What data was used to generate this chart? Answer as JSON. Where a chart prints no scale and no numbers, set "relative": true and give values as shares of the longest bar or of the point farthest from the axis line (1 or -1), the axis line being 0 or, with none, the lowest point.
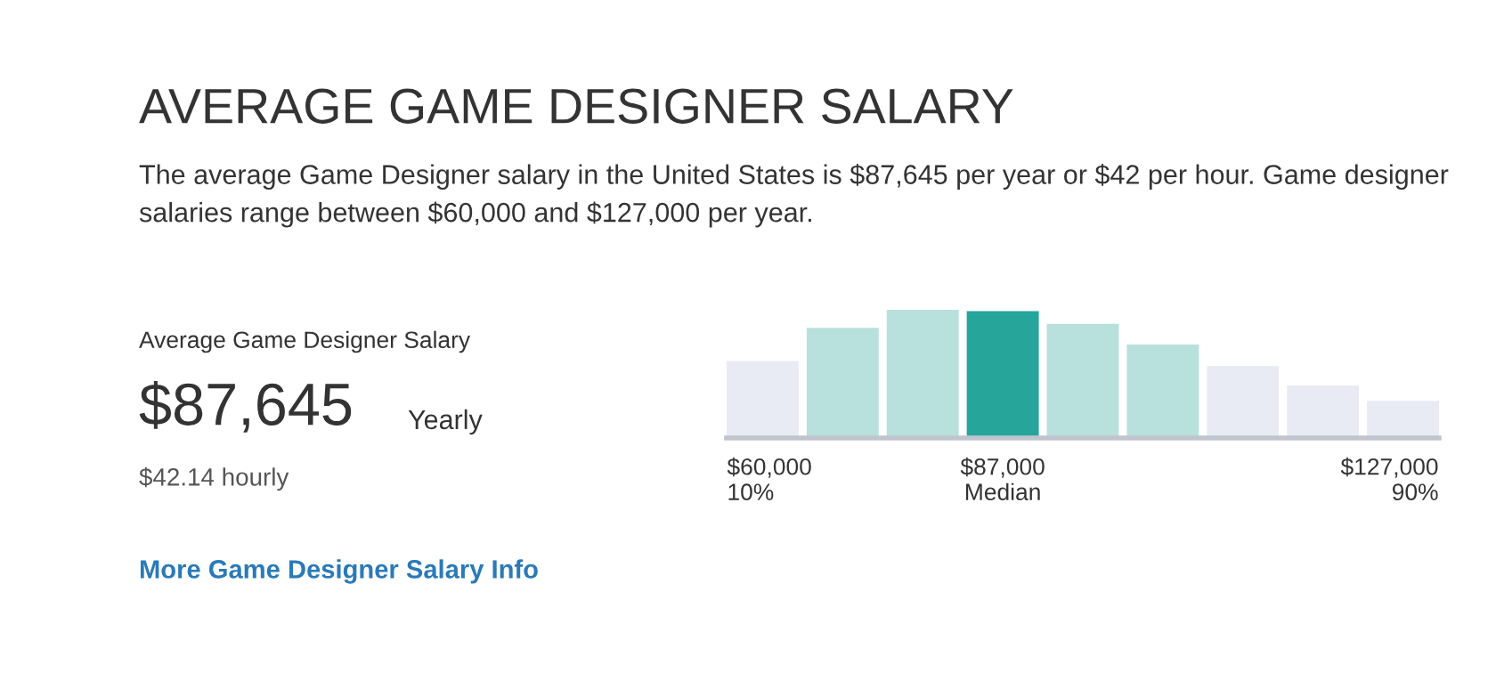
{
  "chart_data": {
    "type": "bar",
    "title": "AVERAGE GAME DESIGNER SALARY",
    "subtitle": "The average Game Designer salary in the United States is $87,645 per year or $42 per hour. Game designer salaries range between $60,000 and $127,000 per year.",
    "categories": [
      "$60,000\n10%",
      null,
      null,
      "$87,000\nMedian",
      null,
      null,
      null,
      null,
      "$127,000\n90%"
    ],
    "values": [
      0.6,
      0.86,
      1,
      0.99,
      0.89,
      0.73,
      0.56,
      0.41,
      0.29
    ],
    "colors": [
      "#e8ebf4",
      "#b8e0dc",
      "#b8e0dc",
      "#26a69a",
      "#b8e0dc",
      "#b8e0dc",
      "#e8ebf4",
      "#e8ebf4",
      "#e8ebf4"
    ],
    "relative": true,
    "grid": false,
    "legend": false,
    "annotations": [
      "Average Game Designer Salary",
      "$87,645",
      "Yearly",
      "$42.14 hourly",
      "More Game Designer Salary Info"
    ]
  }
}
